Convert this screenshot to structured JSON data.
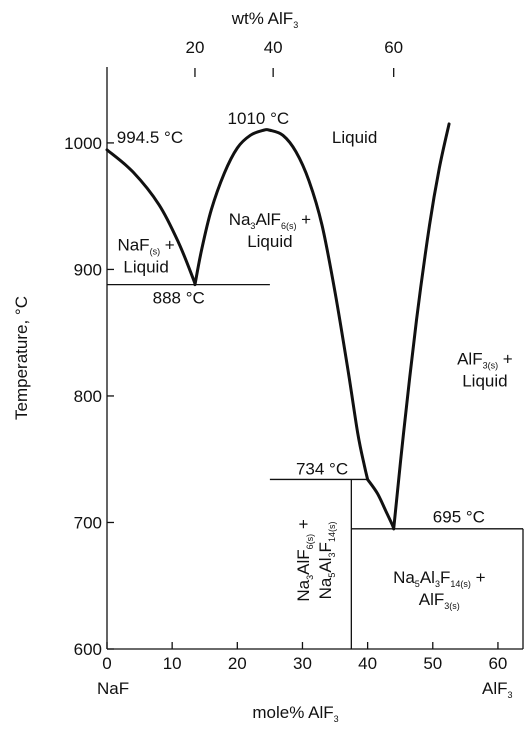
{
  "chart_data": {
    "type": "line",
    "title": "",
    "xlabel": "mole% AlF",
    "xlabel_sub": "3",
    "ylabel": "Temperature, °C",
    "xlim": [
      0,
      64
    ],
    "ylim": [
      600,
      1060
    ],
    "x_ticks": [
      0,
      10,
      20,
      30,
      40,
      50,
      60
    ],
    "y_ticks": [
      600,
      700,
      800,
      900,
      1000
    ],
    "top_axis": {
      "label": "wt% AlF",
      "label_sub": "3",
      "ticks": [
        {
          "label": "20",
          "x": 13.5
        },
        {
          "label": "40",
          "x": 25.5
        },
        {
          "label": "60",
          "x": 44
        }
      ]
    },
    "endpoint_labels": {
      "left": "NaF",
      "right_main": "AlF",
      "right_sub": "3"
    },
    "series": [
      {
        "x": [
          0,
          4,
          8,
          11,
          13.2,
          13.5
        ],
        "y": [
          994.5,
          977,
          951,
          921,
          893,
          888
        ]
      },
      {
        "x": [
          13.5,
          14.5,
          16,
          18,
          20,
          22,
          24,
          25,
          27,
          29,
          31,
          33,
          35,
          37,
          38.5,
          39.5,
          40
        ],
        "y": [
          888,
          915,
          947,
          976,
          996,
          1006,
          1010,
          1010,
          1006,
          993,
          970,
          935,
          882,
          820,
          770,
          745,
          734
        ]
      },
      {
        "x": [
          40,
          41.5,
          42.8,
          43.8,
          44
        ],
        "y": [
          734,
          723,
          709,
          698,
          695
        ]
      },
      {
        "x": [
          44,
          45.5,
          47.5,
          49.5,
          51,
          52.5
        ],
        "y": [
          695,
          770,
          860,
          935,
          980,
          1015
        ]
      }
    ],
    "isotherms": [
      {
        "x": [
          0,
          25
        ],
        "y": [
          888,
          888
        ]
      },
      {
        "x": [
          25,
          40
        ],
        "y": [
          734,
          734
        ]
      },
      {
        "x": [
          37.5,
          64
        ],
        "y": [
          695,
          695
        ]
      }
    ],
    "vertical_lines": [
      {
        "x": 37.5,
        "y": [
          600,
          734
        ]
      },
      {
        "x": 64,
        "y": [
          600,
          695
        ]
      }
    ],
    "annotations": [
      {
        "text": "994.5 °C",
        "x": 1.5,
        "y": 1000
      },
      {
        "text": "1010 °C",
        "x": 18.5,
        "y": 1015
      },
      {
        "text": "888 °C",
        "x": 7,
        "y": 873
      },
      {
        "text": "734 °C",
        "x": 29,
        "y": 738
      },
      {
        "text": "695 °C",
        "x": 50,
        "y": 700
      }
    ],
    "regions": [
      {
        "parts": [
          "Liquid"
        ],
        "x": 38,
        "y": 1000
      },
      {
        "parts": [
          "NaF",
          "(s)",
          " +"
        ],
        "line2": "Liquid",
        "x": 6,
        "y": 915
      },
      {
        "parts": [
          "Na",
          "3",
          "AlF",
          "6(s)",
          " +"
        ],
        "line2": "Liquid",
        "x": 25,
        "y": 935
      },
      {
        "parts": [
          "AlF",
          "3(s)",
          " +"
        ],
        "line2": "Liquid",
        "x": 58,
        "y": 825
      },
      {
        "parts": [
          "Na",
          "5",
          "Al",
          "3",
          "F",
          "14(s)",
          " +"
        ],
        "line2_parts": [
          "AlF",
          "3(s)"
        ],
        "x": 51,
        "y": 652
      },
      {
        "parts": [
          "Na",
          "3",
          "AlF",
          "6(s)",
          " +"
        ],
        "line2_parts": [
          "Na",
          "5",
          "Al",
          "3",
          "F",
          "14(s)"
        ],
        "x": 31,
        "y": 670,
        "rotate": -90
      }
    ]
  }
}
